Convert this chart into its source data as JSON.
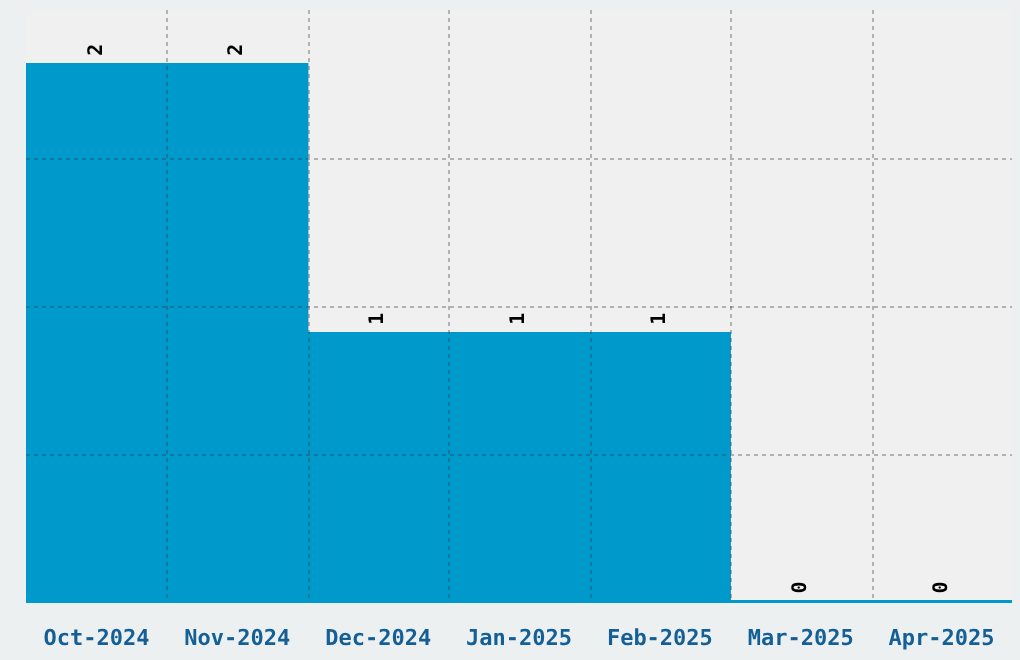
{
  "chart_data": {
    "type": "bar",
    "categories": [
      "Oct-2024",
      "Nov-2024",
      "Dec-2024",
      "Jan-2025",
      "Feb-2025",
      "Mar-2025",
      "Apr-2025"
    ],
    "values": [
      2,
      2,
      1,
      1,
      1,
      0,
      0
    ],
    "color": "#0099cc",
    "ylim": [
      0,
      2.2
    ],
    "yticks": [
      {
        "value": 0.55,
        "label": null
      },
      {
        "value": 1.1,
        "label": null
      },
      {
        "value": 1.65,
        "label": null
      }
    ],
    "tick_labels": "x",
    "grid": true,
    "data_labels": true,
    "legend": false
  }
}
